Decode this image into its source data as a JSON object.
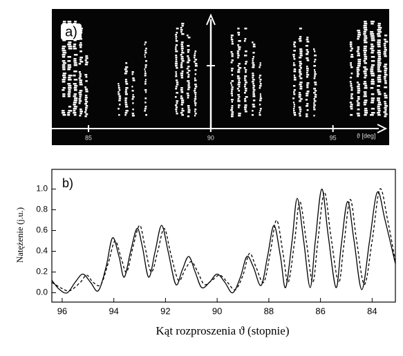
{
  "panel_a": {
    "label": "a)",
    "axis_label": "ϑ [deg]",
    "xlim": [
      83.5,
      97.3
    ],
    "xticks": [
      85,
      90,
      95
    ]
  },
  "chart_data": {
    "type": "line",
    "panel_label": "b)",
    "x_label": "Kąt rozproszenia ϑ (stopnie)",
    "y_label": "Natężenie (j.u.)",
    "xlim": [
      96.4,
      83.1
    ],
    "ylim": [
      -0.09,
      1.19
    ],
    "xticks": [
      96,
      94,
      92,
      90,
      88,
      86,
      84
    ],
    "yticks": [
      {
        "value": 0,
        "label": "0.0"
      },
      0.2,
      0.4,
      0.6,
      0.8,
      {
        "value": 1,
        "label": "1.0"
      }
    ],
    "series": [
      {
        "color": "#000000",
        "dash": "solid",
        "x": [
          96.4,
          96.1,
          95.8,
          95.5,
          95.2,
          94.9,
          94.6,
          94.3,
          94.05,
          93.8,
          93.6,
          93.35,
          93.1,
          92.9,
          92.65,
          92.4,
          92.15,
          91.9,
          91.6,
          91.35,
          91.1,
          90.85,
          90.6,
          90.3,
          90.0,
          89.7,
          89.4,
          89.1,
          88.85,
          88.6,
          88.3,
          88.05,
          87.8,
          87.55,
          87.35,
          87.1,
          86.9,
          86.65,
          86.4,
          86.2,
          85.95,
          85.7,
          85.4,
          85.2,
          84.95,
          84.7,
          84.4,
          84.1,
          83.8,
          83.5,
          83.1
        ],
        "values": [
          0.12,
          0.03,
          0.0,
          0.1,
          0.18,
          0.1,
          0.02,
          0.25,
          0.53,
          0.35,
          0.15,
          0.4,
          0.62,
          0.45,
          0.15,
          0.4,
          0.65,
          0.4,
          0.08,
          0.22,
          0.35,
          0.2,
          0.05,
          0.1,
          0.18,
          0.1,
          0.0,
          0.15,
          0.35,
          0.25,
          0.07,
          0.35,
          0.65,
          0.35,
          0.05,
          0.5,
          0.91,
          0.5,
          0.05,
          0.5,
          1.0,
          0.55,
          0.05,
          0.45,
          0.88,
          0.5,
          0.03,
          0.5,
          0.97,
          0.7,
          0.28
        ]
      },
      {
        "color": "#000000",
        "dash": "dashed",
        "x": [
          96.4,
          96.0,
          95.7,
          95.3,
          95.05,
          94.8,
          94.5,
          94.2,
          93.95,
          93.7,
          93.5,
          93.25,
          93.0,
          92.8,
          92.55,
          92.3,
          92.05,
          91.8,
          91.5,
          91.25,
          91.0,
          90.75,
          90.5,
          90.2,
          89.9,
          89.6,
          89.3,
          89.0,
          88.75,
          88.5,
          88.2,
          87.95,
          87.7,
          87.45,
          87.25,
          87.0,
          86.8,
          86.55,
          86.3,
          86.1,
          85.85,
          85.6,
          85.3,
          85.1,
          84.85,
          84.6,
          84.3,
          84.0,
          83.7,
          83.4,
          83.1
        ],
        "values": [
          0.1,
          0.04,
          0.02,
          0.1,
          0.17,
          0.1,
          0.08,
          0.3,
          0.5,
          0.32,
          0.2,
          0.45,
          0.65,
          0.45,
          0.2,
          0.4,
          0.62,
          0.38,
          0.12,
          0.22,
          0.3,
          0.2,
          0.08,
          0.12,
          0.17,
          0.1,
          0.03,
          0.17,
          0.38,
          0.25,
          0.1,
          0.38,
          0.7,
          0.38,
          0.1,
          0.5,
          0.88,
          0.5,
          0.1,
          0.5,
          0.97,
          0.55,
          0.1,
          0.45,
          0.9,
          0.5,
          0.08,
          0.5,
          1.0,
          0.7,
          0.3
        ]
      }
    ]
  }
}
